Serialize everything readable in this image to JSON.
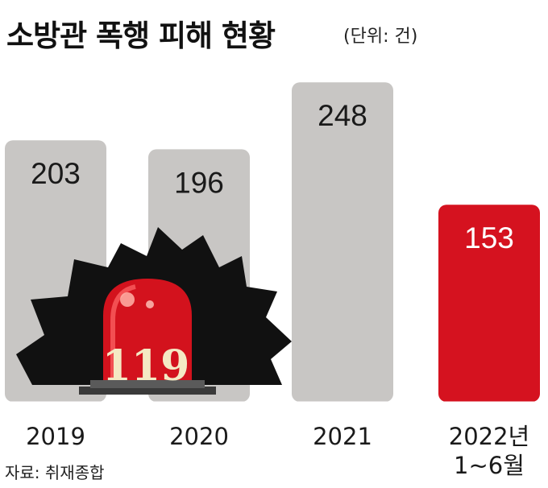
{
  "header": {
    "title": "소방관 폭행 피해 현황",
    "unit": "(단위: 건)"
  },
  "source": "자료: 취재종합",
  "illustration": {
    "text": "119"
  },
  "colors": {
    "bar_default": "#c8c6c4",
    "bar_highlight": "#d5121f",
    "illustration_bg": "#111111"
  },
  "chart_data": {
    "type": "bar",
    "categories": [
      "2019",
      "2020",
      "2021",
      "2022년 1~6월"
    ],
    "values": [
      203,
      196,
      248,
      153
    ],
    "highlight_index": 3,
    "title": "소방관 폭행 피해 현황",
    "xlabel": "",
    "ylabel": "",
    "ylim": [
      0,
      280
    ],
    "grid": false,
    "legend": "none"
  }
}
